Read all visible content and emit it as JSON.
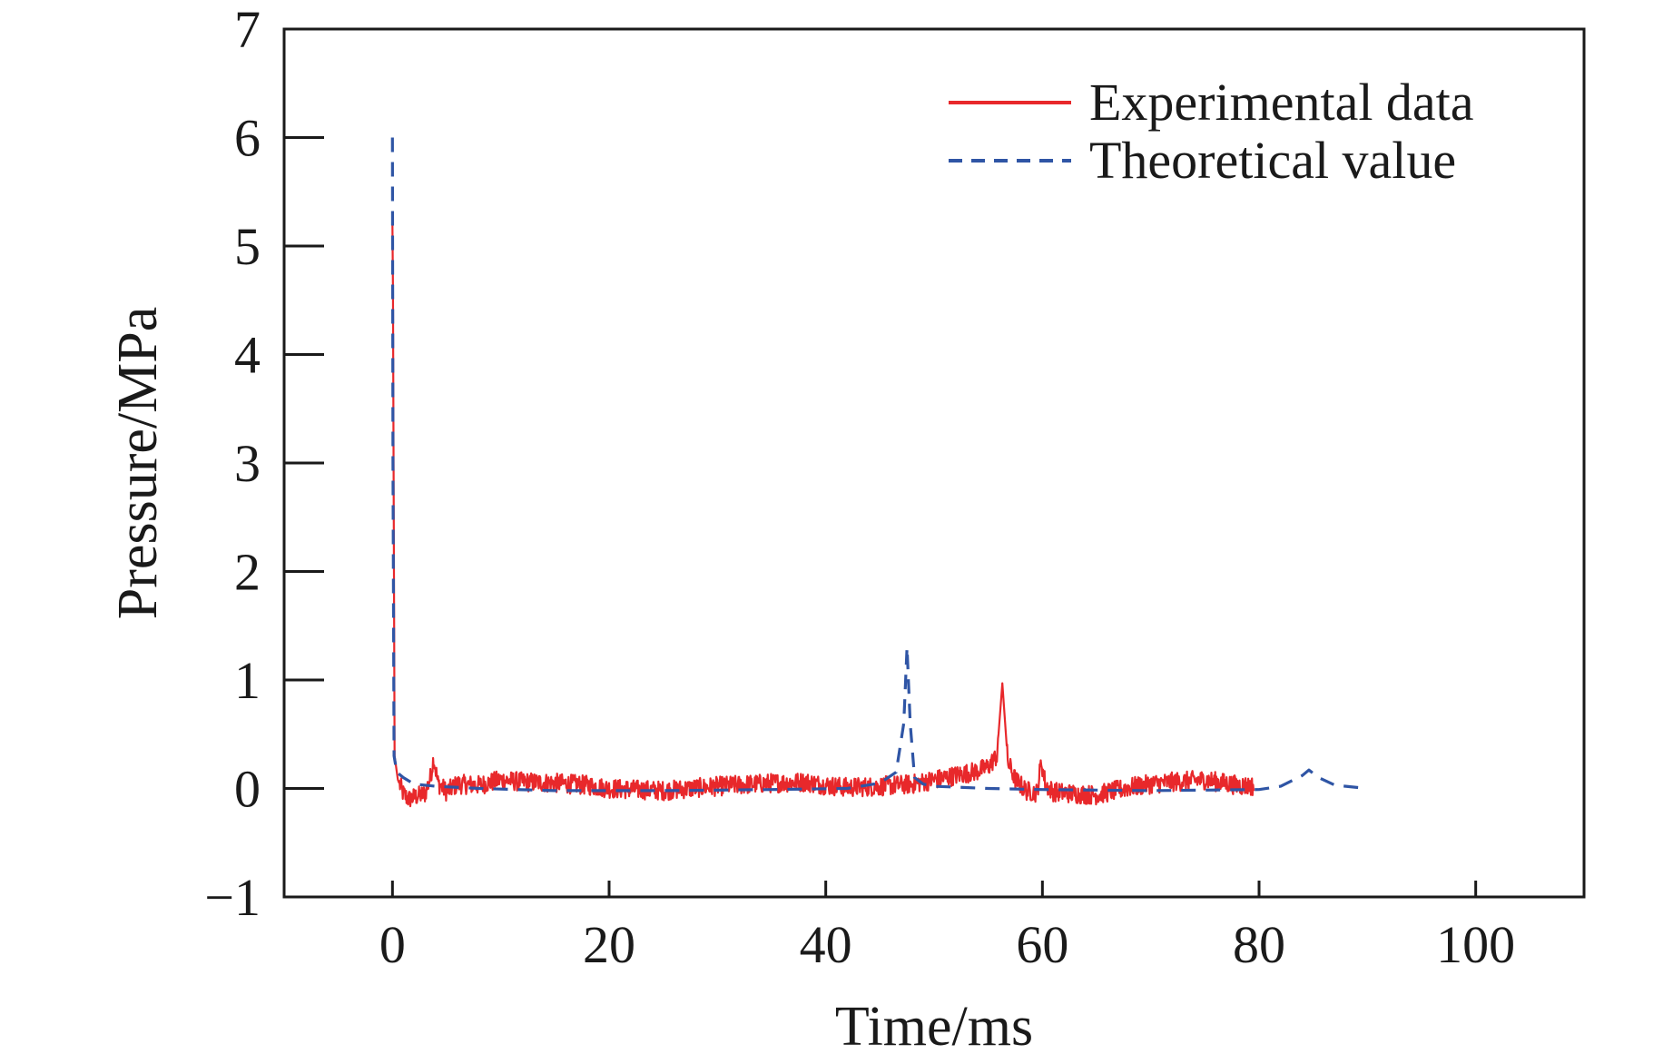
{
  "chart_data": {
    "type": "line",
    "title": "",
    "xlabel": "Time/ms",
    "ylabel": "Pressure/MPa",
    "xlim": [
      -10,
      110
    ],
    "ylim": [
      -1,
      7
    ],
    "xticks": [
      0,
      20,
      40,
      60,
      80,
      100
    ],
    "yticks": [
      -1,
      0,
      1,
      2,
      3,
      4,
      5,
      6,
      7
    ],
    "xtick_labels": [
      "0",
      "20",
      "40",
      "60",
      "80",
      "100"
    ],
    "ytick_labels": [
      "−1",
      "0",
      "1",
      "2",
      "3",
      "4",
      "5",
      "6",
      "7"
    ],
    "grid": false,
    "legend_position": "top-right",
    "series": [
      {
        "name": "Experimental data",
        "color": "#e8282b",
        "style": "solid",
        "x": [
          0,
          0.05,
          0.2,
          0.5,
          1,
          1.5,
          2,
          3,
          3.5,
          3.8,
          4.2,
          5,
          6,
          8,
          10,
          12,
          15,
          18,
          20,
          25,
          30,
          35,
          38,
          40,
          42,
          45,
          48,
          50,
          52,
          54,
          55,
          55.8,
          56.3,
          56.8,
          57.5,
          58.5,
          59.5,
          59.9,
          60.3,
          61,
          63,
          65,
          68,
          70,
          72,
          75,
          78,
          79.5
        ],
        "y": [
          5.2,
          4.6,
          0.3,
          0.08,
          -0.05,
          -0.1,
          -0.08,
          -0.05,
          0.1,
          0.28,
          0.05,
          -0.03,
          0.04,
          0.03,
          0.08,
          0.06,
          0.05,
          0.03,
          0.0,
          -0.02,
          0.02,
          0.05,
          0.06,
          0.03,
          0.01,
          0.02,
          0.04,
          0.08,
          0.12,
          0.16,
          0.2,
          0.3,
          0.97,
          0.25,
          0.08,
          -0.02,
          -0.04,
          0.25,
          0.03,
          -0.03,
          -0.05,
          -0.06,
          0.01,
          0.04,
          0.06,
          0.08,
          0.03,
          0.02
        ],
        "noise_amplitude": 0.09
      },
      {
        "name": "Theoretical value",
        "color": "#2f55a5",
        "style": "dashed",
        "x": [
          0,
          0.05,
          0.15,
          0.4,
          1,
          2,
          4,
          8,
          15,
          25,
          35,
          42,
          45,
          46.5,
          47.2,
          47.5,
          47.8,
          48.2,
          49,
          50,
          55,
          60,
          70,
          80,
          82,
          84,
          84.6,
          85.5,
          87,
          90
        ],
        "y": [
          6.0,
          3.0,
          0.3,
          0.15,
          0.1,
          0.04,
          0.02,
          0.0,
          -0.02,
          -0.02,
          -0.01,
          0.0,
          0.05,
          0.15,
          0.6,
          1.3,
          0.6,
          0.1,
          0.04,
          0.02,
          0.0,
          -0.01,
          -0.02,
          -0.01,
          0.02,
          0.12,
          0.17,
          0.1,
          0.03,
          0.0
        ]
      }
    ]
  }
}
